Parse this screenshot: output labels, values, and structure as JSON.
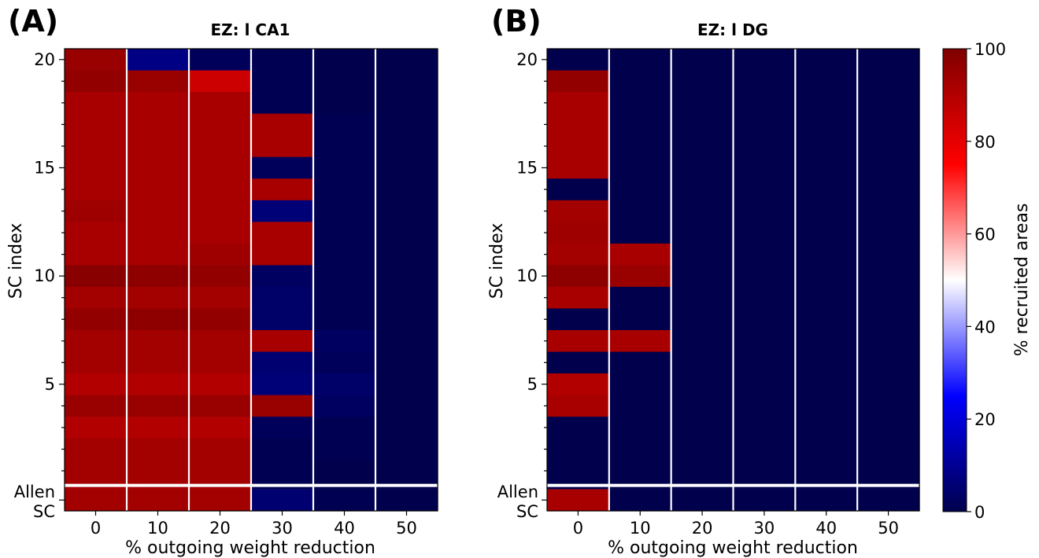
{
  "panels": [
    {
      "letter": "(A)",
      "title": "EZ: l CA1",
      "xlabel": "% outgoing weight reduction",
      "ylabel": "SC index",
      "allen_label_1": "Allen",
      "allen_label_2": "SC"
    },
    {
      "letter": "(B)",
      "title": "EZ: l DG",
      "xlabel": "% outgoing weight reduction",
      "ylabel": "SC index",
      "allen_label_1": "Allen",
      "allen_label_2": "SC"
    }
  ],
  "colorbar": {
    "label": "% recruited areas",
    "ticks": [
      "0",
      "20",
      "40",
      "60",
      "80",
      "100"
    ],
    "colors": [
      "#00004c",
      "#0000ff",
      "#ffffff",
      "#ff0000",
      "#7f0000"
    ]
  },
  "chart_data": [
    {
      "type": "heatmap",
      "title": "EZ: l CA1",
      "xlabel": "% outgoing weight reduction",
      "ylabel": "SC index",
      "x_categories": [
        "0",
        "10",
        "20",
        "30",
        "40",
        "50"
      ],
      "y_rows_top_to_bottom": [
        "20",
        "19",
        "18",
        "17",
        "16",
        "15",
        "14",
        "13",
        "12",
        "11",
        "10",
        "9",
        "8",
        "7",
        "6",
        "5",
        "4",
        "3",
        "2",
        "1",
        "Allen SC"
      ],
      "y_ticks": [
        "20",
        "15",
        "10",
        "5",
        "Allen SC"
      ],
      "value_range": [
        0,
        100
      ],
      "values": [
        [
          95,
          8,
          2,
          1,
          0,
          0
        ],
        [
          96,
          95,
          85,
          1,
          0,
          0
        ],
        [
          92,
          92,
          92,
          1,
          0,
          0
        ],
        [
          92,
          92,
          92,
          92,
          1,
          0
        ],
        [
          92,
          92,
          92,
          92,
          1,
          0
        ],
        [
          92,
          92,
          92,
          2,
          1,
          0
        ],
        [
          92,
          92,
          92,
          92,
          1,
          0
        ],
        [
          94,
          92,
          92,
          6,
          1,
          0
        ],
        [
          92,
          92,
          92,
          92,
          1,
          0
        ],
        [
          92,
          92,
          94,
          92,
          1,
          0
        ],
        [
          98,
          97,
          96,
          3,
          1,
          0
        ],
        [
          93,
          93,
          93,
          4,
          1,
          0
        ],
        [
          96,
          97,
          96,
          4,
          1,
          0
        ],
        [
          93,
          93,
          93,
          92,
          3,
          0
        ],
        [
          93,
          93,
          93,
          5,
          2,
          0
        ],
        [
          90,
          90,
          90,
          6,
          4,
          0
        ],
        [
          95,
          95,
          95,
          95,
          3,
          0
        ],
        [
          90,
          90,
          90,
          2,
          1,
          0
        ],
        [
          93,
          93,
          93,
          1,
          1,
          0
        ],
        [
          93,
          93,
          93,
          1,
          0,
          0
        ],
        [
          93,
          93,
          93,
          5,
          1,
          0
        ]
      ]
    },
    {
      "type": "heatmap",
      "title": "EZ: l DG",
      "xlabel": "% outgoing weight reduction",
      "ylabel": "SC index",
      "x_categories": [
        "0",
        "10",
        "20",
        "30",
        "40",
        "50"
      ],
      "y_rows_top_to_bottom": [
        "20",
        "19",
        "18",
        "17",
        "16",
        "15",
        "14",
        "13",
        "12",
        "11",
        "10",
        "9",
        "8",
        "7",
        "6",
        "5",
        "4",
        "3",
        "2",
        "1",
        "Allen SC"
      ],
      "y_ticks": [
        "20",
        "15",
        "10",
        "5",
        "Allen SC"
      ],
      "value_range": [
        0,
        100
      ],
      "values": [
        [
          0,
          0,
          0,
          0,
          0,
          0
        ],
        [
          96,
          0,
          0,
          0,
          0,
          0
        ],
        [
          92,
          0,
          0,
          0,
          0,
          0
        ],
        [
          92,
          0,
          0,
          0,
          0,
          0
        ],
        [
          92,
          0,
          0,
          0,
          0,
          0
        ],
        [
          92,
          0,
          0,
          0,
          0,
          0
        ],
        [
          0,
          0,
          0,
          0,
          0,
          0
        ],
        [
          93,
          0,
          0,
          0,
          0,
          0
        ],
        [
          94,
          0,
          0,
          0,
          0,
          0
        ],
        [
          93,
          92,
          0,
          0,
          0,
          0
        ],
        [
          97,
          95,
          0,
          0,
          0,
          0
        ],
        [
          92,
          0,
          0,
          0,
          0,
          0
        ],
        [
          0,
          0,
          0,
          0,
          0,
          0
        ],
        [
          92,
          92,
          0,
          0,
          0,
          0
        ],
        [
          0,
          0,
          0,
          0,
          0,
          0
        ],
        [
          90,
          0,
          0,
          0,
          0,
          0
        ],
        [
          92,
          0,
          0,
          0,
          0,
          0
        ],
        [
          0,
          0,
          0,
          0,
          0,
          0
        ],
        [
          0,
          0,
          0,
          0,
          0,
          0
        ],
        [
          0,
          0,
          0,
          0,
          0,
          0
        ],
        [
          92,
          0,
          0,
          0,
          0,
          0
        ]
      ]
    }
  ]
}
